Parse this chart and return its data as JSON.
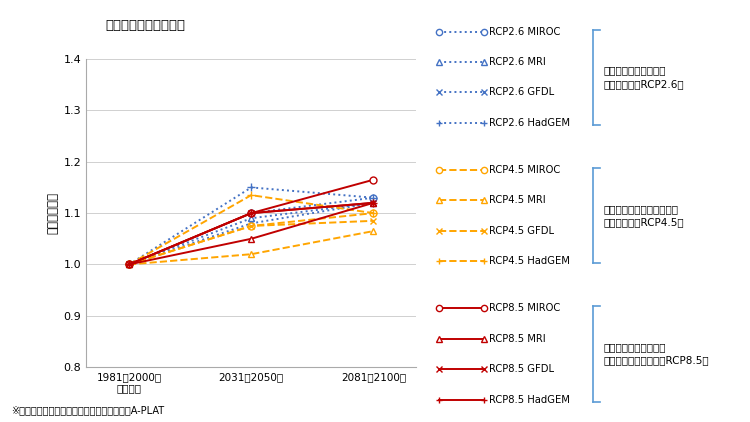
{
  "title": "全国　将来の年降水量",
  "ylabel": "相対値（倍）",
  "source": "※出典　気候変動適応情報プラットフォームA-PLAT",
  "xtick_labels": [
    "1981〜2000年\n基準期間",
    "2031〜2050年",
    "2081〜2100年"
  ],
  "ylim": [
    0.8,
    1.4
  ],
  "yticks": [
    0.8,
    0.9,
    1.0,
    1.1,
    1.2,
    1.3,
    1.4
  ],
  "series": [
    {
      "label": "RCP2.6 MIROC",
      "color": "#4472C4",
      "linestyle": "dotted",
      "marker": "o",
      "mfc": "white",
      "ms": 5,
      "lw": 1.4,
      "values": [
        1.0,
        1.1,
        1.13
      ]
    },
    {
      "label": "RCP2.6 MRI",
      "color": "#4472C4",
      "linestyle": "dotted",
      "marker": "^",
      "mfc": "white",
      "ms": 5,
      "lw": 1.4,
      "values": [
        1.0,
        1.09,
        1.12
      ]
    },
    {
      "label": "RCP2.6 GFDL",
      "color": "#4472C4",
      "linestyle": "dotted",
      "marker": "x",
      "mfc": "#4472C4",
      "ms": 5,
      "lw": 1.4,
      "values": [
        1.0,
        1.08,
        1.12
      ]
    },
    {
      "label": "RCP2.6 HadGEM",
      "color": "#4472C4",
      "linestyle": "dotted",
      "marker": "+",
      "mfc": "#4472C4",
      "ms": 6,
      "lw": 1.4,
      "values": [
        1.0,
        1.15,
        1.13
      ]
    },
    {
      "label": "RCP4.5 MIROC",
      "color": "#FFA500",
      "linestyle": "dashed",
      "marker": "o",
      "mfc": "white",
      "ms": 5,
      "lw": 1.4,
      "values": [
        1.0,
        1.075,
        1.1
      ]
    },
    {
      "label": "RCP4.5 MRI",
      "color": "#FFA500",
      "linestyle": "dashed",
      "marker": "^",
      "mfc": "white",
      "ms": 5,
      "lw": 1.4,
      "values": [
        1.0,
        1.02,
        1.065
      ]
    },
    {
      "label": "RCP4.5 GFDL",
      "color": "#FFA500",
      "linestyle": "dashed",
      "marker": "x",
      "mfc": "#FFA500",
      "ms": 5,
      "lw": 1.4,
      "values": [
        1.0,
        1.075,
        1.085
      ]
    },
    {
      "label": "RCP4.5 HadGEM",
      "color": "#FFA500",
      "linestyle": "dashed",
      "marker": "+",
      "mfc": "#FFA500",
      "ms": 6,
      "lw": 1.4,
      "values": [
        1.0,
        1.135,
        1.1
      ]
    },
    {
      "label": "RCP8.5 MIROC",
      "color": "#C00000",
      "linestyle": "solid",
      "marker": "o",
      "mfc": "white",
      "ms": 5,
      "lw": 1.4,
      "values": [
        1.0,
        1.1,
        1.165
      ]
    },
    {
      "label": "RCP8.5 MRI",
      "color": "#C00000",
      "linestyle": "solid",
      "marker": "^",
      "mfc": "white",
      "ms": 5,
      "lw": 1.4,
      "values": [
        1.0,
        1.05,
        1.12
      ]
    },
    {
      "label": "RCP8.5 GFDL",
      "color": "#C00000",
      "linestyle": "solid",
      "marker": "x",
      "mfc": "#C00000",
      "ms": 5,
      "lw": 1.4,
      "values": [
        1.0,
        1.1,
        1.12
      ]
    },
    {
      "label": "RCP8.5 HadGEM",
      "color": "#C00000",
      "linestyle": "solid",
      "marker": "+",
      "mfc": "#C00000",
      "ms": 6,
      "lw": 1.4,
      "values": [
        1.0,
        1.1,
        1.12
      ]
    }
  ],
  "group_configs": [
    {
      "prefix": "RCP2.6",
      "color": "#4472C4",
      "linestyle": "dotted",
      "items": [
        "MIROC",
        "MRI",
        "GFDL",
        "HadGEM"
      ],
      "group_label": "厳しい気候変動対策を\n取った場合（RCP2.6）"
    },
    {
      "prefix": "RCP4.5",
      "color": "#FFA500",
      "linestyle": "dashed",
      "items": [
        "MIROC",
        "MRI",
        "GFDL",
        "HadGEM"
      ],
      "group_label": "一定程度の気候変動対策を\n取った場合（RCP4.5）"
    },
    {
      "prefix": "RCP8.5",
      "color": "#C00000",
      "linestyle": "solid",
      "items": [
        "MIROC",
        "MRI",
        "GFDL",
        "HadGEM"
      ],
      "group_label": "有効な気候変動対策が\n取られなかった場合（RCP8.5）"
    }
  ],
  "marker_map": {
    "MIROC": "o",
    "MRI": "^",
    "GFDL": "x",
    "HadGEM": "+"
  },
  "background_color": "#ffffff",
  "grid_color": "#d0d0d0",
  "bracket_color": "#5B9BD5"
}
